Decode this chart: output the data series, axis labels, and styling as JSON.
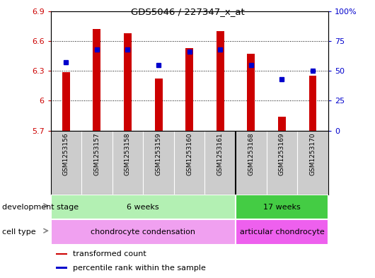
{
  "title": "GDS5046 / 227347_x_at",
  "samples": [
    "GSM1253156",
    "GSM1253157",
    "GSM1253158",
    "GSM1253159",
    "GSM1253160",
    "GSM1253161",
    "GSM1253168",
    "GSM1253169",
    "GSM1253170"
  ],
  "bar_values": [
    6.29,
    6.72,
    6.68,
    6.22,
    6.53,
    6.7,
    6.47,
    5.84,
    6.25
  ],
  "percentile_values": [
    57,
    68,
    68,
    55,
    66,
    68,
    55,
    43,
    50
  ],
  "ymin": 5.7,
  "ymax": 6.9,
  "bar_color": "#cc0000",
  "dot_color": "#0000cc",
  "yticks": [
    5.7,
    6.0,
    6.3,
    6.6,
    6.9
  ],
  "ytick_labels": [
    "5.7",
    "6",
    "6.3",
    "6.6",
    "6.9"
  ],
  "right_yticks": [
    0,
    25,
    50,
    75,
    100
  ],
  "right_ytick_labels": [
    "0",
    "25",
    "50",
    "75",
    "100%"
  ],
  "development_stage_groups": [
    {
      "label": "6 weeks",
      "start": 0,
      "end": 5,
      "color": "#b3f0b3"
    },
    {
      "label": "17 weeks",
      "start": 6,
      "end": 8,
      "color": "#44cc44"
    }
  ],
  "cell_type_groups": [
    {
      "label": "chondrocyte condensation",
      "start": 0,
      "end": 5,
      "color": "#f0a0f0"
    },
    {
      "label": "articular chondrocyte",
      "start": 6,
      "end": 8,
      "color": "#ee60ee"
    }
  ],
  "legend_items": [
    {
      "label": "transformed count",
      "color": "#cc0000"
    },
    {
      "label": "percentile rank within the sample",
      "color": "#0000cc"
    }
  ],
  "bar_width": 0.25,
  "ax_bg_color": "#ffffff",
  "label_color_left": "#cc0000",
  "label_color_right": "#0000cc",
  "sample_bg": "#cccccc",
  "group_split": 5.5
}
